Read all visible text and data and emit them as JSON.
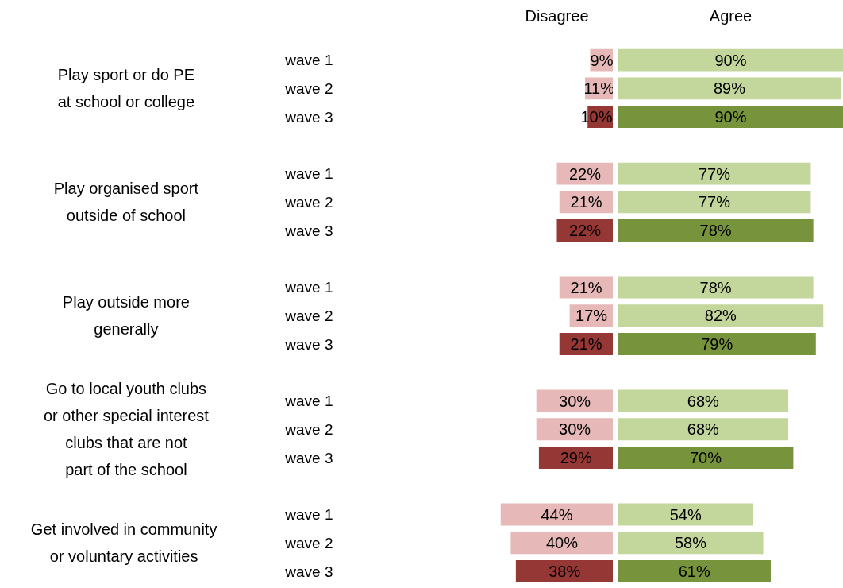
{
  "chart_data": [
    {
      "type": "bar",
      "orientation": "horizontal",
      "categories": [
        "wave 1",
        "wave 2",
        "wave 3",
        null,
        "wave 1",
        "wave 2",
        "wave 3",
        null,
        "wave 1",
        "wave 2",
        "wave 3",
        null,
        "wave 1",
        "wave 2",
        "wave 3",
        null,
        "wave 1",
        "wave 2",
        "wave 3"
      ],
      "xlim": [
        44,
        0
      ],
      "tick_labels": "y",
      "series": [
        {
          "name": "Disagree",
          "values": [
            9,
            11,
            10,
            null,
            22,
            21,
            22,
            null,
            21,
            17,
            21,
            null,
            30,
            30,
            29,
            null,
            44,
            40,
            38
          ],
          "value_labels": [
            "9%",
            "11%",
            "10%",
            null,
            "22%",
            "21%",
            "22%",
            null,
            "21%",
            "17%",
            "21%",
            null,
            "30%",
            "30%",
            "29%",
            null,
            "44%",
            "40%",
            "38%"
          ],
          "colors": [
            "#e6b9b8",
            "#e6b9b8",
            "#953735",
            null,
            "#e6b9b8",
            "#e6b9b8",
            "#953735",
            null,
            "#e6b9b8",
            "#e6b9b8",
            "#953735",
            null,
            "#e6b9b8",
            "#e6b9b8",
            "#953735",
            null,
            "#e6b9b8",
            "#e6b9b8",
            "#953735"
          ]
        }
      ],
      "annotations": [
        "Play sport or do PE\nat school or college",
        "Play organised sport\noutside of school",
        "Play outside more\ngenerally",
        "Go to local youth clubs\nor other special interest\nclubs that are not\npart of the school",
        "Get involved  in community\nor voluntary  activities"
      ]
    },
    {
      "type": "bar",
      "orientation": "horizontal",
      "xlim": [
        0,
        90
      ],
      "tick_labels": false,
      "series": [
        {
          "name": "Agree",
          "values": [
            90,
            89,
            90,
            null,
            77,
            77,
            78,
            null,
            78,
            82,
            79,
            null,
            68,
            68,
            70,
            null,
            54,
            58,
            61
          ],
          "value_labels": [
            "90%",
            "89%",
            "90%",
            null,
            "77%",
            "77%",
            "78%",
            null,
            "78%",
            "82%",
            "79%",
            null,
            "68%",
            "68%",
            "70%",
            null,
            "54%",
            "58%",
            "61%"
          ],
          "colors": [
            "#c3d69b",
            "#c3d69b",
            "#77933c",
            null,
            "#c3d69b",
            "#c3d69b",
            "#77933c",
            null,
            "#c3d69b",
            "#c3d69b",
            "#77933c",
            null,
            "#c3d69b",
            "#c3d69b",
            "#77933c",
            null,
            "#c3d69b",
            "#c3d69b",
            "#77933c"
          ]
        }
      ]
    }
  ]
}
